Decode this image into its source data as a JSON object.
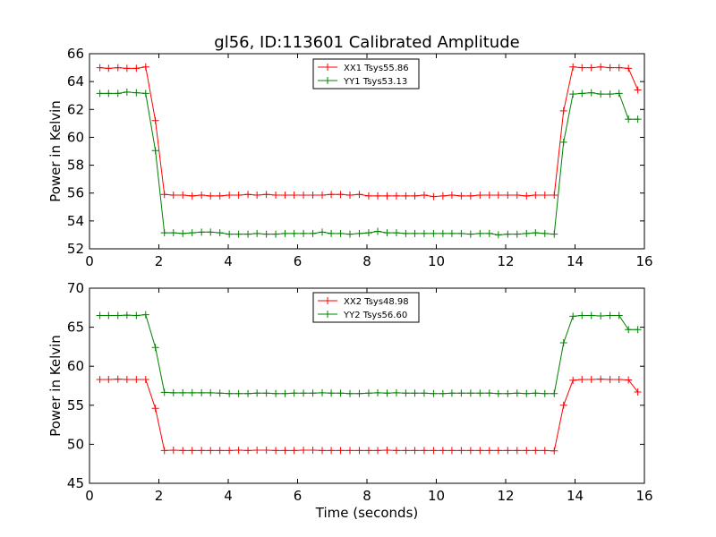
{
  "chart_data": [
    {
      "type": "line",
      "title": "gl56, ID:113601 Calibrated Amplitude",
      "xlabel": "",
      "ylabel": "Power in Kelvin",
      "xlim": [
        0,
        16
      ],
      "ylim": [
        52,
        66
      ],
      "xticks": [
        "0",
        "2",
        "4",
        "6",
        "8",
        "10",
        "12",
        "14",
        "16"
      ],
      "yticks": [
        "52",
        "54",
        "56",
        "58",
        "60",
        "62",
        "64",
        "66"
      ],
      "legend_position": "top-center",
      "x": [
        0.3,
        0.55,
        0.82,
        1.08,
        1.35,
        1.62,
        1.9,
        2.16,
        2.42,
        2.69,
        2.96,
        3.23,
        3.49,
        3.76,
        4.03,
        4.3,
        4.57,
        4.83,
        5.1,
        5.37,
        5.64,
        5.9,
        6.17,
        6.44,
        6.71,
        6.97,
        7.24,
        7.51,
        7.78,
        8.05,
        8.31,
        8.58,
        8.85,
        9.12,
        9.38,
        9.65,
        9.92,
        10.19,
        10.45,
        10.72,
        10.99,
        11.26,
        11.53,
        11.79,
        12.06,
        12.33,
        12.6,
        12.86,
        13.13,
        13.4,
        13.67,
        13.94,
        14.2,
        14.47,
        14.74,
        15.01,
        15.27,
        15.54,
        15.81
      ],
      "series": [
        {
          "name": "XX1 Tsys55.86",
          "color": "#ff0000",
          "values": [
            65.0,
            64.95,
            65.0,
            64.95,
            64.95,
            65.05,
            61.2,
            55.9,
            55.85,
            55.85,
            55.8,
            55.85,
            55.8,
            55.8,
            55.85,
            55.85,
            55.9,
            55.85,
            55.9,
            55.85,
            55.85,
            55.85,
            55.85,
            55.85,
            55.85,
            55.9,
            55.9,
            55.85,
            55.9,
            55.8,
            55.8,
            55.8,
            55.8,
            55.8,
            55.8,
            55.85,
            55.75,
            55.8,
            55.85,
            55.8,
            55.8,
            55.85,
            55.85,
            55.85,
            55.85,
            55.85,
            55.8,
            55.85,
            55.85,
            55.85,
            61.9,
            65.05,
            65.0,
            65.0,
            65.05,
            65.0,
            65.0,
            64.95,
            63.4
          ]
        },
        {
          "name": "YY1 Tsys53.13",
          "color": "#008000",
          "values": [
            63.15,
            63.15,
            63.15,
            63.25,
            63.2,
            63.15,
            59.05,
            53.15,
            53.15,
            53.1,
            53.15,
            53.2,
            53.2,
            53.15,
            53.05,
            53.05,
            53.05,
            53.1,
            53.05,
            53.05,
            53.1,
            53.1,
            53.1,
            53.1,
            53.2,
            53.1,
            53.1,
            53.05,
            53.1,
            53.15,
            53.25,
            53.15,
            53.15,
            53.1,
            53.1,
            53.1,
            53.1,
            53.1,
            53.1,
            53.1,
            53.05,
            53.1,
            53.1,
            53.0,
            53.05,
            53.05,
            53.1,
            53.15,
            53.1,
            53.05,
            59.65,
            63.1,
            63.15,
            63.2,
            63.1,
            63.1,
            63.15,
            61.3,
            61.3
          ]
        }
      ]
    },
    {
      "type": "line",
      "title": "",
      "xlabel": "Time (seconds)",
      "ylabel": "Power in Kelvin",
      "xlim": [
        0,
        16
      ],
      "ylim": [
        45,
        70
      ],
      "xticks": [
        "0",
        "2",
        "4",
        "6",
        "8",
        "10",
        "12",
        "14",
        "16"
      ],
      "yticks": [
        "45",
        "50",
        "55",
        "60",
        "65",
        "70"
      ],
      "legend_position": "top-center",
      "x": [
        0.3,
        0.55,
        0.82,
        1.08,
        1.35,
        1.62,
        1.9,
        2.16,
        2.42,
        2.69,
        2.96,
        3.23,
        3.49,
        3.76,
        4.03,
        4.3,
        4.57,
        4.83,
        5.1,
        5.37,
        5.64,
        5.9,
        6.17,
        6.44,
        6.71,
        6.97,
        7.24,
        7.51,
        7.78,
        8.05,
        8.31,
        8.58,
        8.85,
        9.12,
        9.38,
        9.65,
        9.92,
        10.19,
        10.45,
        10.72,
        10.99,
        11.26,
        11.53,
        11.79,
        12.06,
        12.33,
        12.6,
        12.86,
        13.13,
        13.4,
        13.67,
        13.94,
        14.2,
        14.47,
        14.74,
        15.01,
        15.27,
        15.54,
        15.81
      ],
      "series": [
        {
          "name": "XX2 Tsys48.98",
          "color": "#ff0000",
          "values": [
            58.3,
            58.3,
            58.35,
            58.3,
            58.3,
            58.3,
            54.6,
            49.2,
            49.25,
            49.2,
            49.2,
            49.2,
            49.2,
            49.2,
            49.2,
            49.25,
            49.2,
            49.25,
            49.25,
            49.2,
            49.2,
            49.2,
            49.25,
            49.25,
            49.2,
            49.2,
            49.2,
            49.2,
            49.2,
            49.2,
            49.2,
            49.25,
            49.2,
            49.2,
            49.2,
            49.2,
            49.2,
            49.2,
            49.2,
            49.2,
            49.2,
            49.2,
            49.2,
            49.2,
            49.2,
            49.2,
            49.2,
            49.2,
            49.2,
            49.15,
            55.0,
            58.2,
            58.3,
            58.3,
            58.35,
            58.3,
            58.3,
            58.25,
            56.7
          ]
        },
        {
          "name": "YY2 Tsys56.60",
          "color": "#008000",
          "values": [
            66.5,
            66.5,
            66.5,
            66.55,
            66.5,
            66.6,
            62.4,
            56.65,
            56.6,
            56.6,
            56.6,
            56.6,
            56.6,
            56.55,
            56.5,
            56.5,
            56.5,
            56.55,
            56.55,
            56.5,
            56.5,
            56.55,
            56.55,
            56.55,
            56.6,
            56.55,
            56.55,
            56.5,
            56.5,
            56.55,
            56.6,
            56.55,
            56.6,
            56.55,
            56.55,
            56.55,
            56.5,
            56.5,
            56.55,
            56.55,
            56.55,
            56.55,
            56.55,
            56.5,
            56.5,
            56.55,
            56.5,
            56.55,
            56.5,
            56.5,
            63.0,
            66.4,
            66.5,
            66.5,
            66.45,
            66.5,
            66.5,
            64.7,
            64.7
          ]
        }
      ]
    }
  ]
}
